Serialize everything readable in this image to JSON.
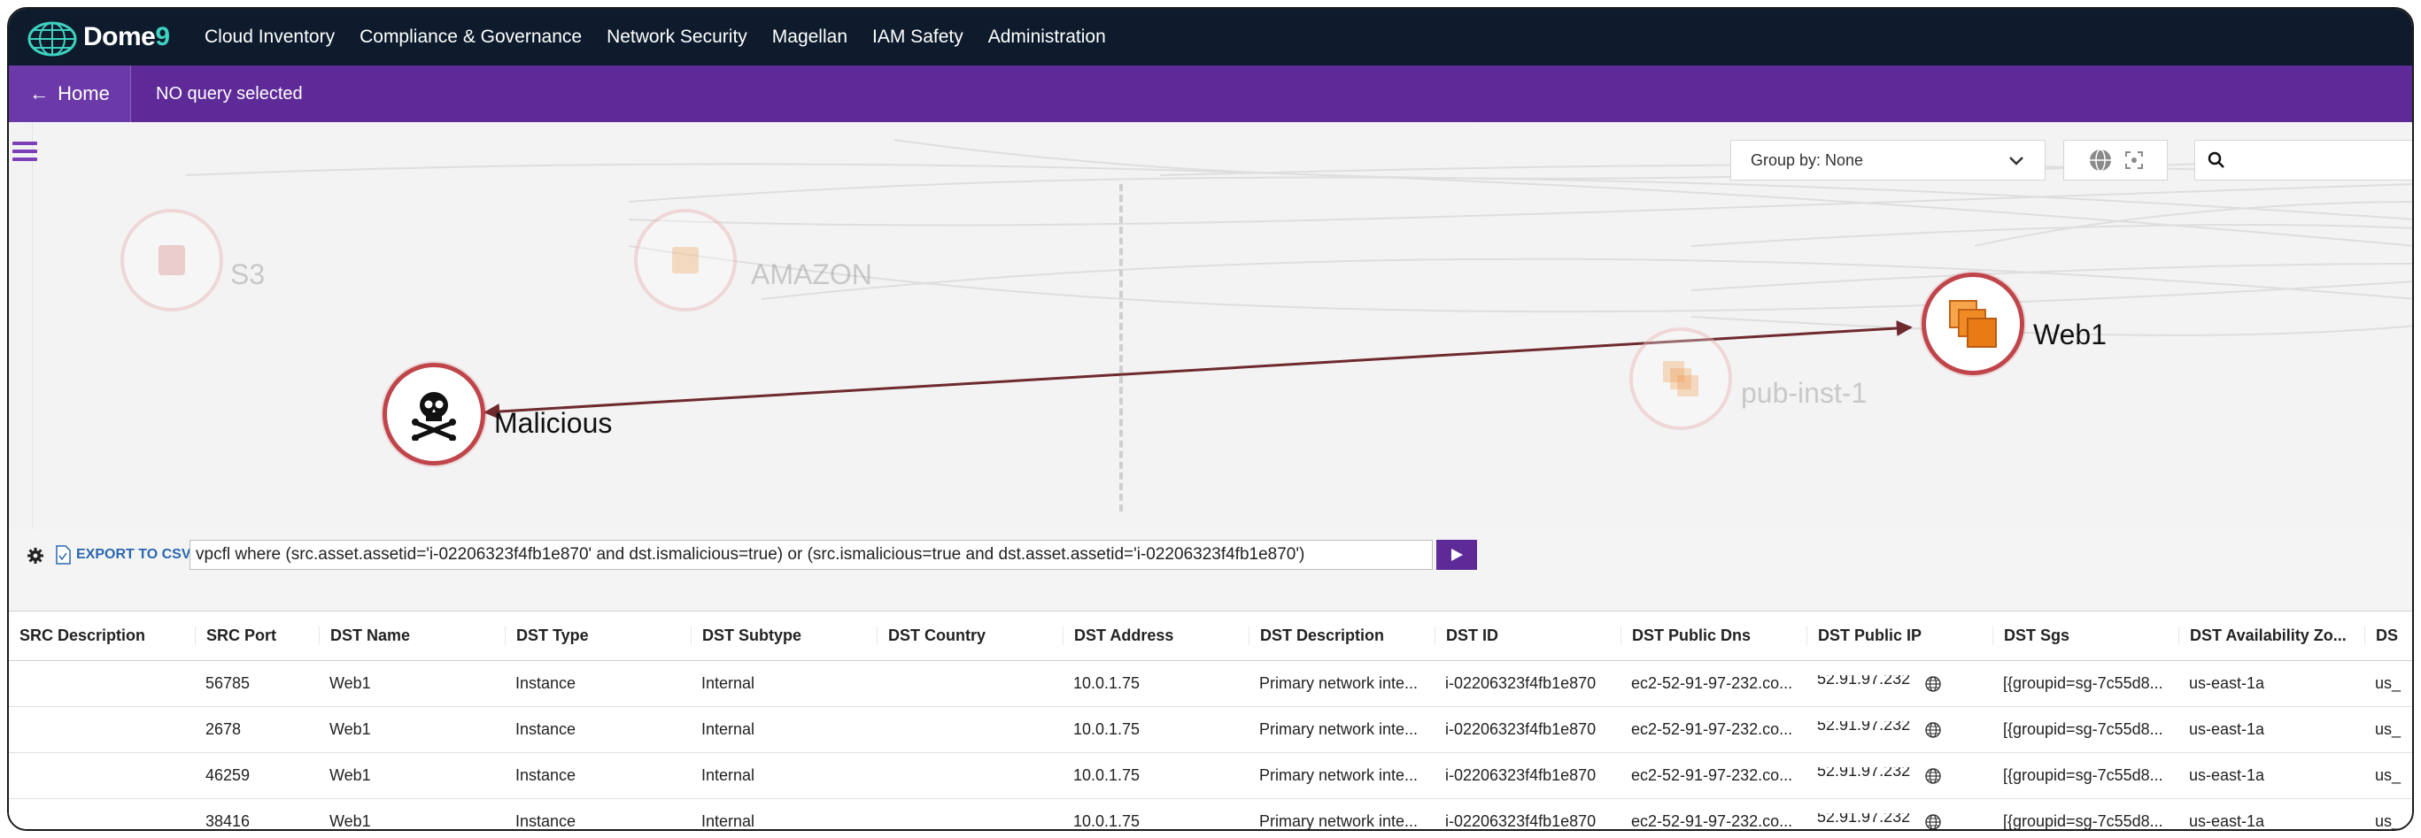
{
  "nav": {
    "logo_text": "Dome",
    "logo_nine": "9",
    "items": [
      "Cloud Inventory",
      "Compliance & Governance",
      "Network Security",
      "Magellan",
      "IAM Safety",
      "Administration"
    ]
  },
  "purple_bar": {
    "home_label": "Home",
    "status": "NO query selected"
  },
  "graph": {
    "group_by": "Group by: None",
    "search_placeholder": "",
    "nodes": {
      "s3": "S3",
      "amazon": "AMAZON",
      "pub_inst": "pub-inst-1",
      "malicious": "Malicious",
      "web1": "Web1"
    }
  },
  "querybar": {
    "export_label": "EXPORT TO CSV",
    "query": "vpcfl where (src.asset.assetid='i-02206323f4fb1e870' and dst.ismalicious=true) or (src.ismalicious=true and dst.asset.assetid='i-02206323f4fb1e870')"
  },
  "table": {
    "columns": [
      "SRC Description",
      "SRC Port",
      "DST Name",
      "DST Type",
      "DST Subtype",
      "DST Country",
      "DST Address",
      "DST Description",
      "DST ID",
      "DST Public Dns",
      "DST Public IP",
      "DST Sgs",
      "DST Availability Zo...",
      "DS"
    ],
    "rows": [
      [
        "",
        "56785",
        "Web1",
        "Instance",
        "Internal",
        "",
        "10.0.1.75",
        "Primary network inte...",
        "i-02206323f4fb1e870",
        "ec2-52-91-97-232.co...",
        "52.91.97.232",
        "[{groupid=sg-7c55d8...",
        "us-east-1a",
        "us_"
      ],
      [
        "",
        "2678",
        "Web1",
        "Instance",
        "Internal",
        "",
        "10.0.1.75",
        "Primary network inte...",
        "i-02206323f4fb1e870",
        "ec2-52-91-97-232.co...",
        "52.91.97.232",
        "[{groupid=sg-7c55d8...",
        "us-east-1a",
        "us_"
      ],
      [
        "",
        "46259",
        "Web1",
        "Instance",
        "Internal",
        "",
        "10.0.1.75",
        "Primary network inte...",
        "i-02206323f4fb1e870",
        "ec2-52-91-97-232.co...",
        "52.91.97.232",
        "[{groupid=sg-7c55d8...",
        "us-east-1a",
        "us_"
      ],
      [
        "",
        "38416",
        "Web1",
        "Instance",
        "Internal",
        "",
        "10.0.1.75",
        "Primary network inte...",
        "i-02206323f4fb1e870",
        "ec2-52-91-97-232.co...",
        "52.91.97.232",
        "[{groupid=sg-7c55d8...",
        "us-east-1a",
        "us_"
      ]
    ]
  },
  "colors": {
    "nav_bg": "#0d1b2c",
    "purple": "#5e2a98",
    "node_ring": "#c0454a",
    "edge": "#6e2a2e",
    "link": "#2a67b1"
  }
}
